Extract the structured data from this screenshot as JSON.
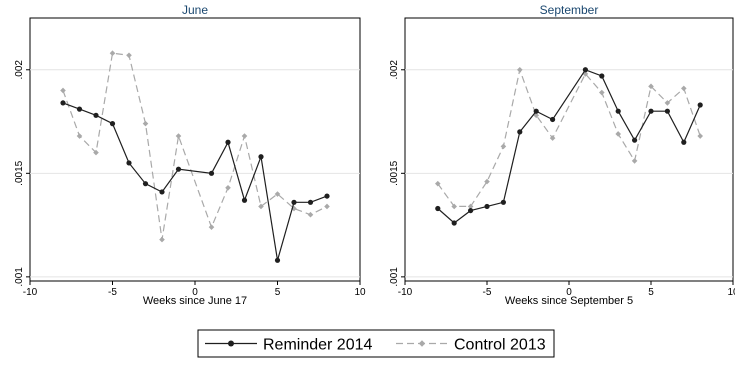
{
  "chart_data": [
    {
      "type": "line",
      "title": "June",
      "xlabel": "Weeks since June 17",
      "ylabel": "",
      "xlim": [
        -10,
        10
      ],
      "ylim": [
        0.00098,
        0.00225
      ],
      "xticks": [
        -10,
        -5,
        0,
        5,
        10
      ],
      "xtick_labels": [
        "-10",
        "-5",
        "0",
        "5",
        "10"
      ],
      "yticks": [
        0.001,
        0.0015,
        0.002
      ],
      "ytick_labels": [
        ".001",
        ".0015",
        ".002"
      ],
      "grid": true,
      "series": [
        {
          "name": "Reminder 2014",
          "color": "#1f1f1f",
          "dash": "solid",
          "marker": "circle",
          "x": [
            -8,
            -7,
            -6,
            -5,
            -4,
            -3,
            -2,
            -1,
            1,
            2,
            3,
            4,
            5,
            6,
            7,
            8
          ],
          "y": [
            0.00184,
            0.00181,
            0.00178,
            0.00174,
            0.00155,
            0.00145,
            0.00141,
            0.00152,
            0.0015,
            0.00165,
            0.00137,
            0.00158,
            0.00108,
            0.00136,
            0.00136,
            0.00139
          ]
        },
        {
          "name": "Control 2013",
          "color": "#a9a9a9",
          "dash": "dashed",
          "marker": "diamond",
          "x": [
            -8,
            -7,
            -6,
            -5,
            -4,
            -3,
            -2,
            -1,
            1,
            2,
            3,
            4,
            5,
            6,
            7,
            8
          ],
          "y": [
            0.0019,
            0.00168,
            0.0016,
            0.00208,
            0.00207,
            0.00174,
            0.00118,
            0.00168,
            0.00124,
            0.00143,
            0.00168,
            0.00134,
            0.0014,
            0.00133,
            0.0013,
            0.00134
          ]
        }
      ]
    },
    {
      "type": "line",
      "title": "September",
      "xlabel": "Weeks since September 5",
      "ylabel": "",
      "xlim": [
        -10,
        10
      ],
      "ylim": [
        0.00098,
        0.00225
      ],
      "xticks": [
        -10,
        -5,
        0,
        5,
        10
      ],
      "xtick_labels": [
        "-10",
        "-5",
        "0",
        "5",
        "10"
      ],
      "yticks": [
        0.001,
        0.0015,
        0.002
      ],
      "ytick_labels": [
        ".001",
        ".0015",
        ".002"
      ],
      "grid": true,
      "series": [
        {
          "name": "Reminder 2014",
          "color": "#1f1f1f",
          "dash": "solid",
          "marker": "circle",
          "x": [
            -8,
            -7,
            -6,
            -5,
            -4,
            -3,
            -2,
            -1,
            1,
            2,
            3,
            4,
            5,
            6,
            7,
            8
          ],
          "y": [
            0.00133,
            0.00126,
            0.00132,
            0.00134,
            0.00136,
            0.0017,
            0.0018,
            0.00176,
            0.002,
            0.00197,
            0.0018,
            0.00166,
            0.0018,
            0.0018,
            0.00165,
            0.00183
          ]
        },
        {
          "name": "Control 2013",
          "color": "#a9a9a9",
          "dash": "dashed",
          "marker": "diamond",
          "x": [
            -8,
            -7,
            -6,
            -5,
            -4,
            -3,
            -2,
            -1,
            1,
            2,
            3,
            4,
            5,
            6,
            7,
            8
          ],
          "y": [
            0.00145,
            0.00134,
            0.00134,
            0.00146,
            0.00163,
            0.002,
            0.00178,
            0.00167,
            0.00198,
            0.00189,
            0.00169,
            0.00156,
            0.00192,
            0.00184,
            0.00191,
            0.00168
          ]
        }
      ]
    }
  ],
  "legend": {
    "placement": "bottom",
    "items": [
      {
        "label": "Reminder 2014",
        "color": "#1f1f1f",
        "dash": "solid",
        "marker": "circle"
      },
      {
        "label": "Control 2013",
        "color": "#a9a9a9",
        "dash": "dashed",
        "marker": "diamond"
      }
    ]
  }
}
